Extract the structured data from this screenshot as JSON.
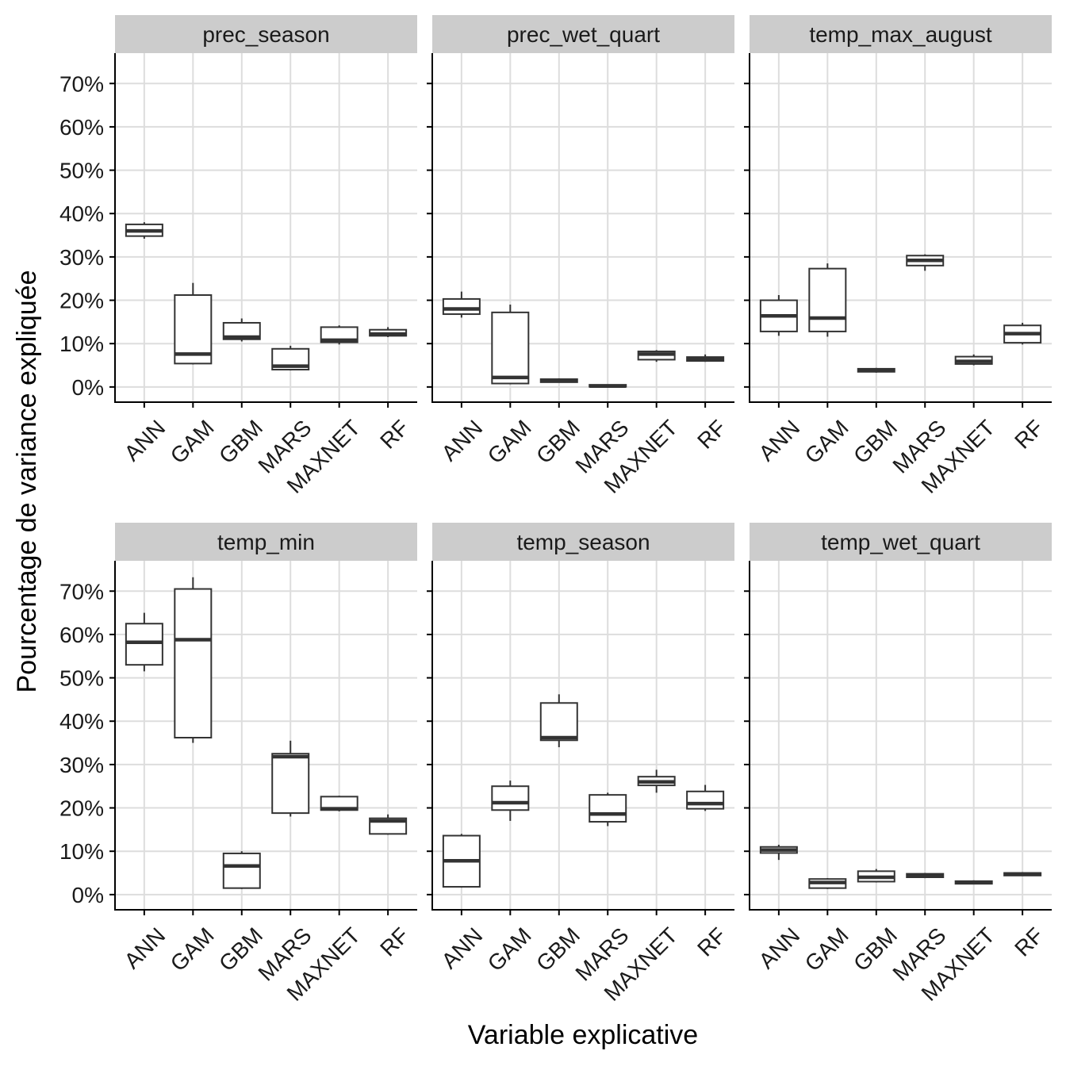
{
  "chart_data": {
    "type": "boxplot",
    "xlabel": "Variable explicative",
    "ylabel": "Pourcentage de variance expliquée",
    "categories": [
      "ANN",
      "GAM",
      "GBM",
      "MARS",
      "MAXNET",
      "RF"
    ],
    "ylim": [
      -3.5,
      77
    ],
    "yticks": [
      0,
      10,
      20,
      30,
      40,
      50,
      60,
      70
    ],
    "ytick_labels": [
      "0%",
      "10%",
      "20%",
      "30%",
      "40%",
      "50%",
      "60%",
      "70%"
    ],
    "grid": true,
    "colors": {
      "box": "#333333",
      "grid": "#dddddd",
      "strip": "#cccccc",
      "axis": "#000000"
    },
    "panels": [
      {
        "title": "prec_season",
        "boxes": [
          {
            "category": "ANN",
            "min": 34.2,
            "q1": 34.8,
            "median": 36.0,
            "q3": 37.5,
            "max": 38.0
          },
          {
            "category": "GAM",
            "min": 5.2,
            "q1": 5.4,
            "median": 7.6,
            "q3": 21.2,
            "max": 24.0
          },
          {
            "category": "GBM",
            "min": 10.5,
            "q1": 11.0,
            "median": 11.5,
            "q3": 14.8,
            "max": 15.8
          },
          {
            "category": "MARS",
            "min": 3.8,
            "q1": 4.0,
            "median": 4.8,
            "q3": 8.8,
            "max": 9.5
          },
          {
            "category": "MAXNET",
            "min": 9.8,
            "q1": 10.3,
            "median": 10.8,
            "q3": 13.8,
            "max": 14.2
          },
          {
            "category": "RF",
            "min": 11.5,
            "q1": 11.8,
            "median": 12.2,
            "q3": 13.2,
            "max": 13.8
          }
        ]
      },
      {
        "title": "prec_wet_quart",
        "boxes": [
          {
            "category": "ANN",
            "min": 16.0,
            "q1": 16.8,
            "median": 18.0,
            "q3": 20.3,
            "max": 22.0
          },
          {
            "category": "GAM",
            "min": 0.6,
            "q1": 0.8,
            "median": 2.2,
            "q3": 17.2,
            "max": 19.0
          },
          {
            "category": "GBM",
            "min": 1.0,
            "q1": 1.1,
            "median": 1.4,
            "q3": 1.8,
            "max": 2.0
          },
          {
            "category": "MARS",
            "min": 0.0,
            "q1": 0.05,
            "median": 0.2,
            "q3": 0.5,
            "max": 0.6
          },
          {
            "category": "MAXNET",
            "min": 5.8,
            "q1": 6.3,
            "median": 7.6,
            "q3": 8.2,
            "max": 8.5
          },
          {
            "category": "RF",
            "min": 5.8,
            "q1": 6.0,
            "median": 6.4,
            "q3": 6.9,
            "max": 7.5
          }
        ]
      },
      {
        "title": "temp_max_august",
        "boxes": [
          {
            "category": "ANN",
            "min": 11.8,
            "q1": 12.8,
            "median": 16.4,
            "q3": 20.0,
            "max": 21.2
          },
          {
            "category": "GAM",
            "min": 11.6,
            "q1": 12.8,
            "median": 15.9,
            "q3": 27.3,
            "max": 28.5
          },
          {
            "category": "GBM",
            "min": 3.3,
            "q1": 3.5,
            "median": 3.8,
            "q3": 4.2,
            "max": 4.4
          },
          {
            "category": "MARS",
            "min": 26.8,
            "q1": 28.0,
            "median": 29.2,
            "q3": 30.3,
            "max": 30.6
          },
          {
            "category": "MAXNET",
            "min": 5.0,
            "q1": 5.3,
            "median": 5.9,
            "q3": 7.0,
            "max": 7.5
          },
          {
            "category": "RF",
            "min": 9.8,
            "q1": 10.2,
            "median": 12.3,
            "q3": 14.2,
            "max": 14.8
          }
        ]
      },
      {
        "title": "temp_min",
        "boxes": [
          {
            "category": "ANN",
            "min": 51.5,
            "q1": 53.0,
            "median": 58.2,
            "q3": 62.5,
            "max": 65.0
          },
          {
            "category": "GAM",
            "min": 35.0,
            "q1": 36.2,
            "median": 58.8,
            "q3": 70.5,
            "max": 73.2
          },
          {
            "category": "GBM",
            "min": 1.3,
            "q1": 1.5,
            "median": 6.6,
            "q3": 9.5,
            "max": 10.0
          },
          {
            "category": "MARS",
            "min": 18.0,
            "q1": 18.8,
            "median": 31.8,
            "q3": 32.5,
            "max": 35.5
          },
          {
            "category": "MAXNET",
            "min": 19.2,
            "q1": 19.5,
            "median": 19.8,
            "q3": 22.6,
            "max": 22.8
          },
          {
            "category": "RF",
            "min": 13.8,
            "q1": 14.0,
            "median": 17.0,
            "q3": 17.6,
            "max": 18.5
          }
        ]
      },
      {
        "title": "temp_season",
        "boxes": [
          {
            "category": "ANN",
            "min": 1.6,
            "q1": 1.8,
            "median": 7.8,
            "q3": 13.6,
            "max": 14.0
          },
          {
            "category": "GAM",
            "min": 17.0,
            "q1": 19.5,
            "median": 21.2,
            "q3": 25.0,
            "max": 26.3
          },
          {
            "category": "GBM",
            "min": 34.0,
            "q1": 35.6,
            "median": 36.2,
            "q3": 44.2,
            "max": 46.2
          },
          {
            "category": "MARS",
            "min": 15.8,
            "q1": 16.8,
            "median": 18.6,
            "q3": 23.0,
            "max": 23.5
          },
          {
            "category": "MAXNET",
            "min": 23.5,
            "q1": 25.2,
            "median": 26.0,
            "q3": 27.2,
            "max": 28.8
          },
          {
            "category": "RF",
            "min": 19.3,
            "q1": 19.8,
            "median": 21.0,
            "q3": 23.8,
            "max": 25.3
          }
        ]
      },
      {
        "title": "temp_wet_quart",
        "boxes": [
          {
            "category": "ANN",
            "min": 8.0,
            "q1": 9.6,
            "median": 10.3,
            "q3": 11.0,
            "max": 11.5
          },
          {
            "category": "GAM",
            "min": 1.3,
            "q1": 1.5,
            "median": 2.8,
            "q3": 3.6,
            "max": 3.8
          },
          {
            "category": "GBM",
            "min": 2.8,
            "q1": 3.0,
            "median": 4.0,
            "q3": 5.4,
            "max": 5.9
          },
          {
            "category": "MARS",
            "min": 3.8,
            "q1": 4.0,
            "median": 4.4,
            "q3": 4.8,
            "max": 5.0
          },
          {
            "category": "MAXNET",
            "min": 2.4,
            "q1": 2.5,
            "median": 2.8,
            "q3": 3.1,
            "max": 3.3
          },
          {
            "category": "RF",
            "min": 4.3,
            "q1": 4.4,
            "median": 4.7,
            "q3": 5.0,
            "max": 5.2
          }
        ]
      }
    ]
  }
}
